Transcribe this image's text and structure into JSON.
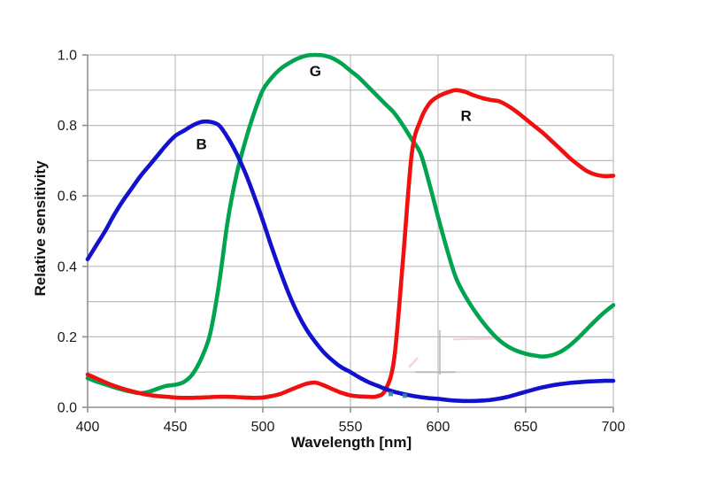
{
  "chart_data": {
    "type": "line",
    "title": "",
    "xlabel": "Wavelength [nm]",
    "ylabel": "Relative sensitivity",
    "xlim": [
      400,
      700
    ],
    "ylim": [
      0.0,
      1.0
    ],
    "x_ticks": [
      400,
      450,
      500,
      550,
      600,
      650,
      700
    ],
    "x_tick_labels": [
      "400",
      "450",
      "500",
      "550",
      "600",
      "650",
      "700"
    ],
    "y_ticks": [
      0.0,
      0.2,
      0.4,
      0.6,
      0.8,
      1.0
    ],
    "y_tick_labels": [
      "0.0",
      "0.2",
      "0.4",
      "0.6",
      "0.8",
      "1.0"
    ],
    "grid": true,
    "x_grid_step": 50,
    "y_grid_step": 0.1,
    "legend": "inline-labels",
    "colors": {
      "grid": "#bdbdbd",
      "axis": "#8f8f8f",
      "text": "#1a1a1a",
      "background": "#ffffff"
    },
    "x": [
      400,
      405,
      410,
      415,
      420,
      425,
      430,
      435,
      440,
      445,
      450,
      455,
      460,
      465,
      470,
      475,
      480,
      485,
      490,
      495,
      500,
      505,
      510,
      515,
      520,
      525,
      530,
      535,
      540,
      545,
      550,
      555,
      560,
      565,
      570,
      575,
      580,
      585,
      590,
      595,
      600,
      605,
      610,
      615,
      620,
      625,
      630,
      635,
      640,
      645,
      650,
      655,
      660,
      665,
      670,
      675,
      680,
      685,
      690,
      695,
      700
    ],
    "series": [
      {
        "name": "G",
        "label": "G",
        "color": "#00A44F",
        "label_pos": {
          "x": 530,
          "y": 0.955
        },
        "peak": {
          "x": 530,
          "y": 1.0
        },
        "values": [
          0.083,
          0.073,
          0.065,
          0.057,
          0.05,
          0.044,
          0.04,
          0.044,
          0.053,
          0.061,
          0.064,
          0.072,
          0.095,
          0.14,
          0.21,
          0.35,
          0.53,
          0.66,
          0.755,
          0.835,
          0.9,
          0.935,
          0.96,
          0.977,
          0.99,
          0.998,
          1.0,
          0.998,
          0.99,
          0.975,
          0.955,
          0.935,
          0.91,
          0.885,
          0.86,
          0.835,
          0.8,
          0.76,
          0.72,
          0.635,
          0.54,
          0.45,
          0.37,
          0.32,
          0.28,
          0.245,
          0.215,
          0.19,
          0.172,
          0.16,
          0.152,
          0.147,
          0.144,
          0.148,
          0.158,
          0.175,
          0.197,
          0.222,
          0.247,
          0.27,
          0.29
        ]
      },
      {
        "name": "R",
        "label": "R",
        "color": "#F01010",
        "label_pos": {
          "x": 616,
          "y": 0.828
        },
        "peak": {
          "x": 610,
          "y": 0.9
        },
        "values": [
          0.093,
          0.082,
          0.071,
          0.061,
          0.053,
          0.046,
          0.04,
          0.035,
          0.032,
          0.03,
          0.028,
          0.027,
          0.027,
          0.028,
          0.029,
          0.03,
          0.03,
          0.029,
          0.028,
          0.027,
          0.028,
          0.032,
          0.038,
          0.048,
          0.058,
          0.067,
          0.07,
          0.062,
          0.051,
          0.041,
          0.034,
          0.031,
          0.03,
          0.031,
          0.05,
          0.14,
          0.42,
          0.72,
          0.815,
          0.862,
          0.882,
          0.893,
          0.9,
          0.896,
          0.886,
          0.878,
          0.872,
          0.868,
          0.855,
          0.838,
          0.818,
          0.798,
          0.778,
          0.755,
          0.732,
          0.708,
          0.688,
          0.67,
          0.66,
          0.656,
          0.657
        ]
      },
      {
        "name": "B",
        "label": "B",
        "color": "#1111CE",
        "label_pos": {
          "x": 465,
          "y": 0.748
        },
        "peak": {
          "x": 467,
          "y": 0.81
        },
        "values": [
          0.42,
          0.46,
          0.5,
          0.545,
          0.585,
          0.62,
          0.655,
          0.685,
          0.715,
          0.745,
          0.77,
          0.785,
          0.8,
          0.81,
          0.81,
          0.8,
          0.765,
          0.72,
          0.665,
          0.6,
          0.53,
          0.455,
          0.385,
          0.32,
          0.265,
          0.22,
          0.185,
          0.155,
          0.132,
          0.113,
          0.1,
          0.085,
          0.072,
          0.062,
          0.052,
          0.044,
          0.038,
          0.033,
          0.029,
          0.026,
          0.024,
          0.021,
          0.019,
          0.018,
          0.018,
          0.019,
          0.021,
          0.025,
          0.03,
          0.037,
          0.044,
          0.051,
          0.057,
          0.062,
          0.066,
          0.069,
          0.071,
          0.073,
          0.074,
          0.075,
          0.075
        ]
      }
    ],
    "stray_marks": {
      "cross": {
        "color": "#aab3b3",
        "x": 601,
        "v_from": 0.093,
        "v_to": 0.219,
        "h_v": 0.1,
        "h_from": 587,
        "h_to": 610
      },
      "pink_color": "#f2a3aa",
      "pink_strokes": [
        {
          "from": [
            583.3,
            0.113
          ],
          "to": [
            588.4,
            0.141
          ]
        },
        {
          "from": [
            608.6,
            0.193
          ],
          "to": [
            635.9,
            0.196
          ]
        }
      ],
      "dot_markers": {
        "color": "#2b8f9c",
        "points": [
          [
            573,
            0.038
          ],
          [
            581,
            0.033
          ]
        ]
      }
    }
  }
}
